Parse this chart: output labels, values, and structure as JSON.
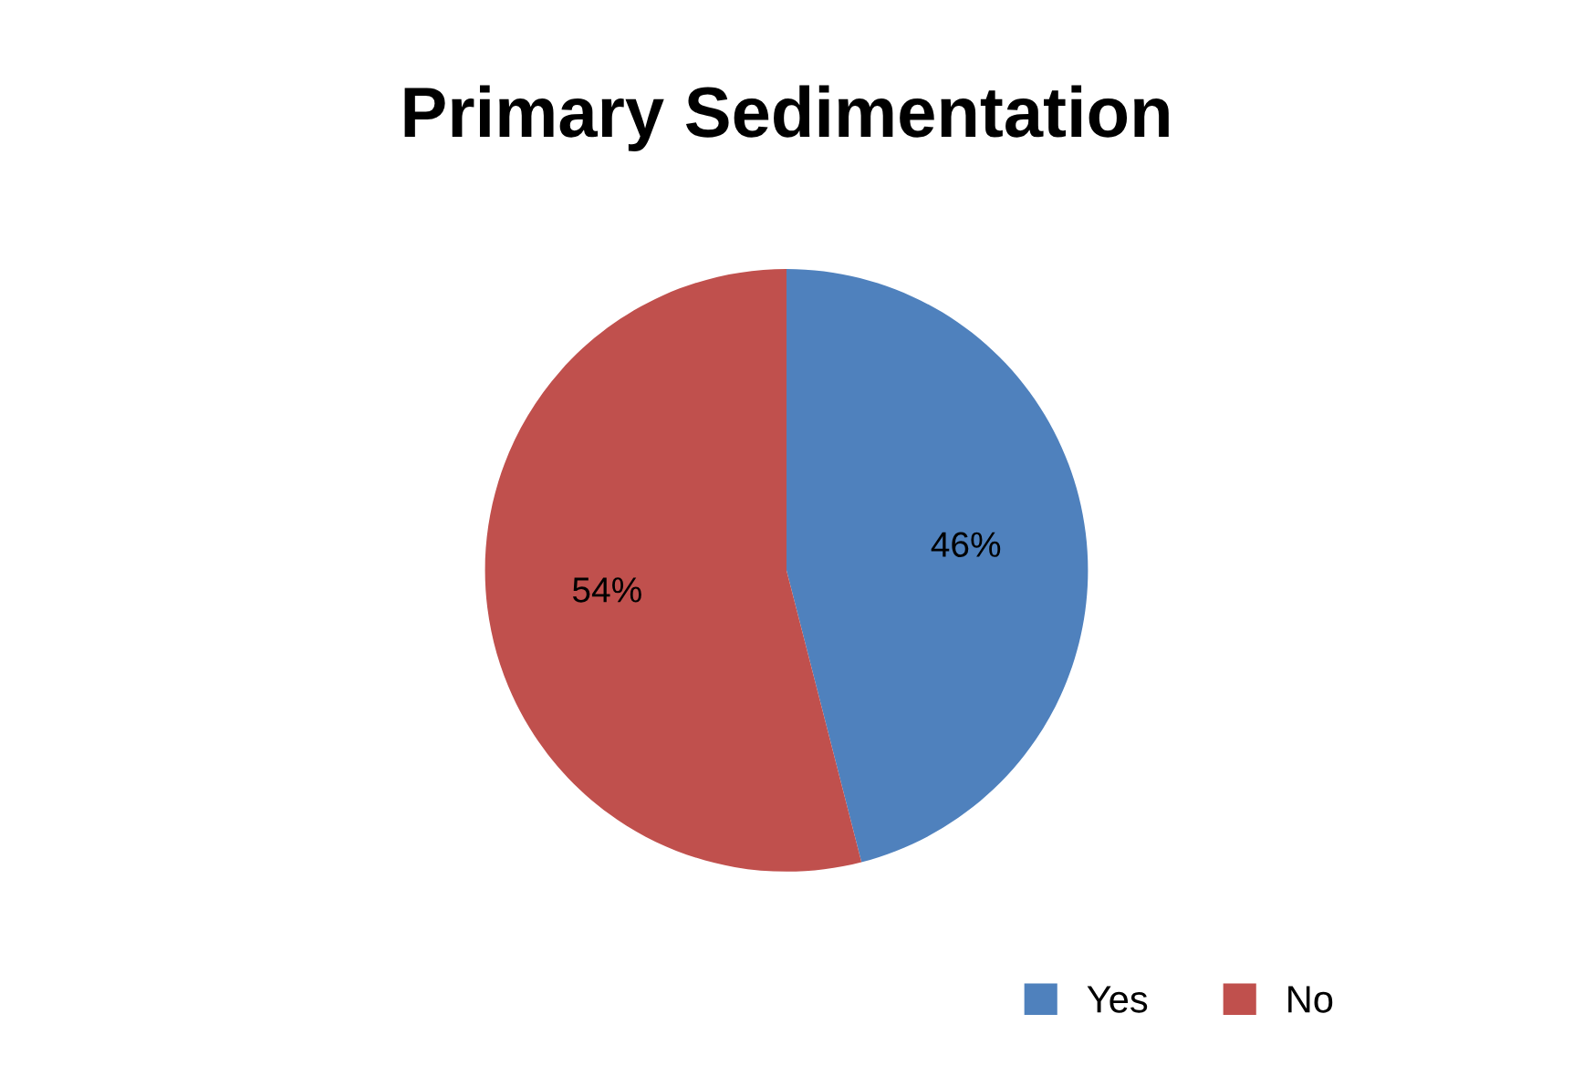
{
  "chart_data": {
    "type": "pie",
    "title": "Primary Sedimentation",
    "categories": [
      "Yes",
      "No"
    ],
    "values": [
      46,
      54
    ],
    "colors": [
      "#4f81bd",
      "#c0504d"
    ],
    "value_labels": [
      "46%",
      "54%"
    ],
    "legend": "bottom"
  }
}
